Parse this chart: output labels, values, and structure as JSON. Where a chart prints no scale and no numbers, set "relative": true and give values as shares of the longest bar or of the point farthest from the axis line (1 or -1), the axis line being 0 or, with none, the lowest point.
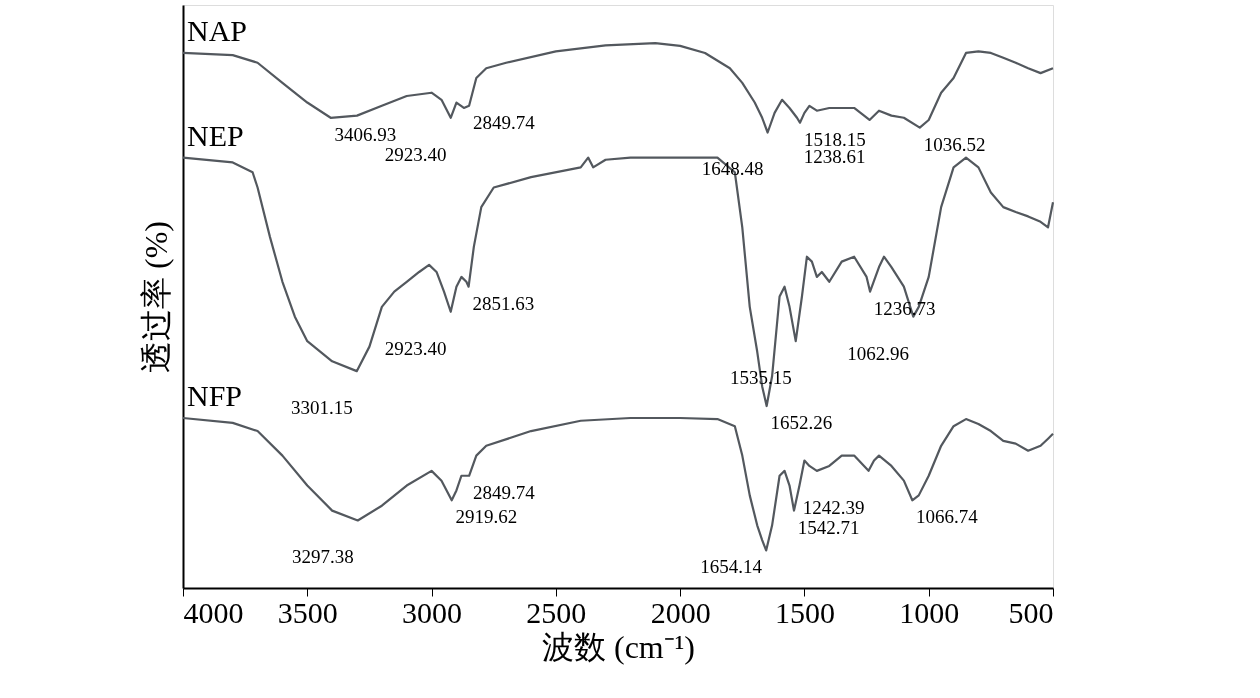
{
  "chart_data": {
    "type": "line",
    "relative": true,
    "xlabel": "波数 (cm⁻¹)",
    "ylabel": "透过率 (%)",
    "xlim": [
      4000,
      500
    ],
    "xticks": [
      4000,
      3500,
      3000,
      2500,
      2000,
      1500,
      1000,
      500
    ],
    "grid": false,
    "marker": "none",
    "line_style": "solid",
    "series": [
      {
        "name": "NAP",
        "color": "#53585e",
        "x": [
          4000,
          3800,
          3700,
          3600,
          3500,
          3406,
          3300,
          3200,
          3100,
          3000,
          2960,
          2923,
          2900,
          2870,
          2849,
          2820,
          2780,
          2700,
          2500,
          2300,
          2100,
          2000,
          1900,
          1800,
          1750,
          1700,
          1670,
          1648,
          1620,
          1590,
          1560,
          1530,
          1518,
          1500,
          1480,
          1450,
          1400,
          1300,
          1238,
          1200,
          1150,
          1100,
          1036,
          1000,
          950,
          900,
          850,
          800,
          750,
          700,
          650,
          600,
          550,
          500
        ],
        "values": [
          0.982,
          0.978,
          0.964,
          0.927,
          0.891,
          0.863,
          0.867,
          0.885,
          0.903,
          0.909,
          0.896,
          0.863,
          0.891,
          0.881,
          0.885,
          0.936,
          0.954,
          0.964,
          0.985,
          0.996,
          1.0,
          0.995,
          0.982,
          0.954,
          0.927,
          0.891,
          0.863,
          0.836,
          0.872,
          0.896,
          0.881,
          0.863,
          0.854,
          0.872,
          0.885,
          0.876,
          0.881,
          0.881,
          0.859,
          0.876,
          0.867,
          0.863,
          0.845,
          0.859,
          0.909,
          0.936,
          0.982,
          0.985,
          0.982,
          0.973,
          0.964,
          0.954,
          0.945,
          0.954
        ]
      },
      {
        "name": "NEP",
        "color": "#53585e",
        "x": [
          4000,
          3800,
          3720,
          3700,
          3650,
          3600,
          3550,
          3500,
          3400,
          3301,
          3250,
          3200,
          3150,
          3100,
          3050,
          3010,
          2980,
          2950,
          2923,
          2900,
          2880,
          2860,
          2851,
          2830,
          2800,
          2750,
          2600,
          2400,
          2370,
          2350,
          2300,
          2200,
          2000,
          1850,
          1780,
          1750,
          1720,
          1690,
          1670,
          1652,
          1630,
          1600,
          1580,
          1560,
          1535,
          1510,
          1490,
          1470,
          1450,
          1430,
          1400,
          1350,
          1300,
          1250,
          1236,
          1200,
          1180,
          1150,
          1100,
          1062,
          1040,
          1000,
          950,
          900,
          850,
          800,
          750,
          700,
          650,
          600,
          550,
          520,
          500
        ],
        "values": [
          0.79,
          0.781,
          0.763,
          0.735,
          0.644,
          0.562,
          0.498,
          0.453,
          0.416,
          0.398,
          0.443,
          0.516,
          0.544,
          0.562,
          0.58,
          0.593,
          0.58,
          0.544,
          0.507,
          0.553,
          0.571,
          0.562,
          0.553,
          0.626,
          0.699,
          0.735,
          0.754,
          0.772,
          0.79,
          0.772,
          0.786,
          0.79,
          0.79,
          0.79,
          0.763,
          0.662,
          0.516,
          0.434,
          0.37,
          0.334,
          0.389,
          0.535,
          0.553,
          0.516,
          0.453,
          0.535,
          0.608,
          0.599,
          0.571,
          0.58,
          0.562,
          0.599,
          0.608,
          0.571,
          0.544,
          0.589,
          0.608,
          0.589,
          0.553,
          0.498,
          0.516,
          0.571,
          0.699,
          0.772,
          0.79,
          0.772,
          0.726,
          0.699,
          0.69,
          0.682,
          0.672,
          0.662,
          0.708
        ]
      },
      {
        "name": "NFP",
        "color": "#53585e",
        "x": [
          4000,
          3800,
          3700,
          3600,
          3500,
          3400,
          3297,
          3200,
          3100,
          3000,
          2960,
          2919,
          2900,
          2880,
          2849,
          2820,
          2780,
          2600,
          2400,
          2200,
          2000,
          1850,
          1780,
          1750,
          1720,
          1690,
          1670,
          1654,
          1630,
          1600,
          1580,
          1560,
          1542,
          1520,
          1500,
          1480,
          1450,
          1400,
          1350,
          1300,
          1242,
          1220,
          1200,
          1150,
          1100,
          1066,
          1040,
          1000,
          950,
          900,
          850,
          800,
          750,
          700,
          650,
          600,
          550,
          520,
          500
        ],
        "values": [
          0.312,
          0.303,
          0.288,
          0.243,
          0.188,
          0.142,
          0.124,
          0.151,
          0.188,
          0.215,
          0.197,
          0.161,
          0.179,
          0.206,
          0.206,
          0.243,
          0.261,
          0.288,
          0.307,
          0.312,
          0.312,
          0.31,
          0.297,
          0.243,
          0.17,
          0.115,
          0.088,
          0.069,
          0.115,
          0.206,
          0.215,
          0.188,
          0.142,
          0.188,
          0.234,
          0.224,
          0.215,
          0.224,
          0.243,
          0.243,
          0.215,
          0.234,
          0.243,
          0.224,
          0.197,
          0.161,
          0.17,
          0.206,
          0.261,
          0.297,
          0.31,
          0.301,
          0.288,
          0.27,
          0.265,
          0.252,
          0.261,
          0.274,
          0.283
        ]
      }
    ],
    "annotations": [
      {
        "text": "3406.93",
        "x": 3406.93,
        "y": 0.863
      },
      {
        "text": "2923.40",
        "x": 2923.4,
        "y": 0.863
      },
      {
        "text": "2849.74",
        "x": 2849.74,
        "y": 0.885
      },
      {
        "text": "1648.48",
        "x": 1648.48,
        "y": 0.836
      },
      {
        "text": "1518.15",
        "x": 1518.15,
        "y": 0.854
      },
      {
        "text": "1238.61",
        "x": 1238.61,
        "y": 0.859
      },
      {
        "text": "1036.52",
        "x": 1036.52,
        "y": 0.845
      },
      {
        "text": "3301.15",
        "x": 3301.15,
        "y": 0.398
      },
      {
        "text": "2851.63",
        "x": 2851.63,
        "y": 0.553
      },
      {
        "text": "2923.40",
        "x": 2923.4,
        "y": 0.507
      },
      {
        "text": "1652.26",
        "x": 1652.26,
        "y": 0.334
      },
      {
        "text": "1535.15",
        "x": 1535.15,
        "y": 0.453
      },
      {
        "text": "1236.73",
        "x": 1236.73,
        "y": 0.544
      },
      {
        "text": "1062.96",
        "x": 1062.96,
        "y": 0.498
      },
      {
        "text": "2919.62",
        "x": 2919.62,
        "y": 0.161
      },
      {
        "text": "3297.38",
        "x": 3297.38,
        "y": 0.124
      },
      {
        "text": "2849.74",
        "x": 2849.74,
        "y": 0.206
      },
      {
        "text": "1654.14",
        "x": 1654.14,
        "y": 0.069
      },
      {
        "text": "1542.71",
        "x": 1542.71,
        "y": 0.142
      },
      {
        "text": "1242.39",
        "x": 1242.39,
        "y": 0.215
      },
      {
        "text": "1066.74",
        "x": 1066.74,
        "y": 0.161
      }
    ]
  }
}
